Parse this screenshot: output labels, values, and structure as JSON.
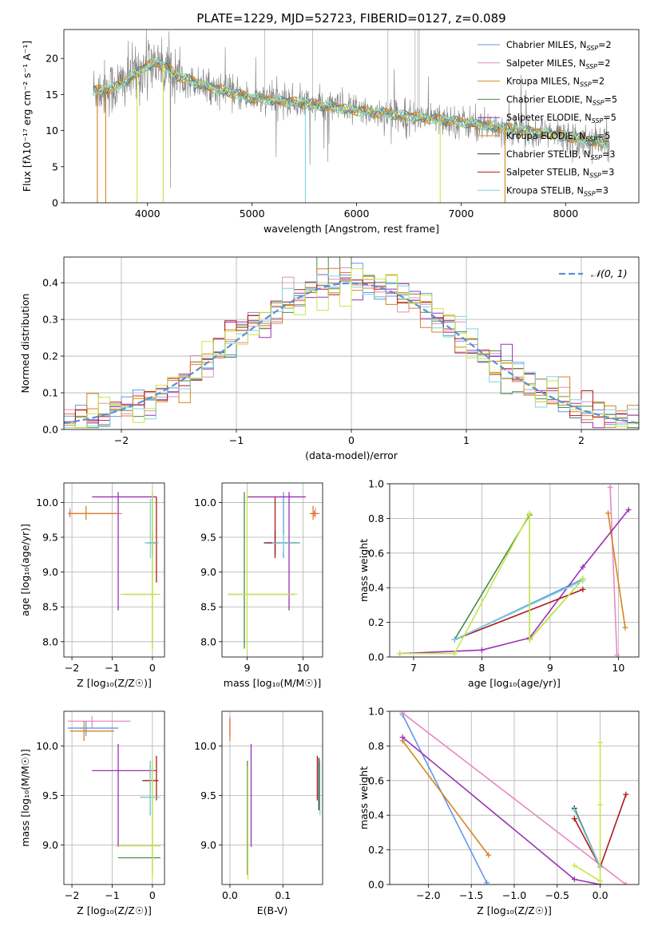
{
  "figure_title": "PLATE=1229, MJD=52723, FIBERID=0127, z=0.089",
  "models": [
    {
      "name": "Chabrier MILES",
      "nssp": "2",
      "color": "#6495ed"
    },
    {
      "name": "Salpeter MILES",
      "nssp": "2",
      "color": "#e78ac3"
    },
    {
      "name": "Kroupa MILES",
      "nssp": "2",
      "color": "#d4871c"
    },
    {
      "name": "Chabrier ELODIE",
      "nssp": "5",
      "color": "#4a8a4a"
    },
    {
      "name": "Salpeter ELODIE",
      "nssp": "5",
      "color": "#9b30b5"
    },
    {
      "name": "Kroupa ELODIE",
      "nssp": "5",
      "color": "#e07b2a"
    },
    {
      "name": "Chabrier STELIB",
      "nssp": "3",
      "color": "#2f2f2f"
    },
    {
      "name": "Salpeter STELIB",
      "nssp": "3",
      "color": "#b0181c"
    },
    {
      "name": "Kroupa STELIB",
      "nssp": "3",
      "color": "#7fd6dc"
    }
  ],
  "nssp_prefix": "N",
  "nssp_sub": "SSP",
  "extra_colors": {
    "data": "#808080",
    "fit_yellow": "#c8e64a",
    "gauss": "#5b8fd9"
  },
  "chart_data": [
    {
      "id": "spectrum",
      "type": "line",
      "xlabel": "wavelength [Angstrom, rest frame]",
      "ylabel": "Flux [fλ10⁻¹⁷ erg cm⁻² s⁻¹ A⁻¹]",
      "xlim": [
        3200,
        8700
      ],
      "ylim": [
        0,
        24
      ],
      "xticks": [
        4000,
        5000,
        6000,
        7000,
        8000
      ],
      "yticks": [
        0,
        5,
        10,
        15,
        20
      ],
      "grid": false,
      "legend": "top-right",
      "continuum": {
        "x": [
          3500,
          3700,
          3900,
          4000,
          4100,
          4300,
          4600,
          5000,
          5500,
          6000,
          6500,
          7000,
          7500,
          8000,
          8400
        ],
        "y": [
          15.5,
          16,
          18,
          19,
          19.5,
          17.5,
          16,
          14.5,
          13.8,
          12.8,
          12,
          11.2,
          10.2,
          9.2,
          8.2
        ]
      }
    },
    {
      "id": "residuals",
      "type": "line",
      "xlabel": "(data-model)/error",
      "ylabel": "Normed distribution",
      "xlim": [
        -2.5,
        2.5
      ],
      "ylim": [
        0,
        0.47
      ],
      "xticks": [
        -2,
        -1,
        0,
        1,
        2
      ],
      "yticks": [
        0.0,
        0.1,
        0.2,
        0.3,
        0.4
      ],
      "grid": true,
      "legend": "top-right",
      "reference_label": "𝒩(0, 1)"
    },
    {
      "id": "age_vs_z",
      "type": "scatter",
      "xlabel": "Z [log₁₀(Z/Z☉)]",
      "ylabel": "age  [log₁₀(age/yr)]",
      "xlim": [
        -2.2,
        0.3
      ],
      "ylim": [
        7.78,
        10.28
      ],
      "xticks": [
        -2,
        -1,
        0
      ],
      "yticks": [
        8.0,
        8.5,
        9.0,
        9.5,
        10.0
      ],
      "grid": true,
      "errorbars": [
        {
          "m": 0,
          "x": 0.0,
          "y": 9.42,
          "xlo": -0.08,
          "xhi": 0.1,
          "ylo": 9.2,
          "yhi": 10.15
        },
        {
          "m": 1,
          "x": -2.05,
          "y": 9.84,
          "xlo": -2.1,
          "xhi": -0.75,
          "ylo": 9.78,
          "yhi": 9.92
        },
        {
          "m": 2,
          "x": -1.65,
          "y": 9.84,
          "xlo": -2.05,
          "xhi": -0.9,
          "ylo": 9.75,
          "yhi": 9.95
        },
        {
          "m": 3,
          "x": 0.0,
          "y": 8.68,
          "xlo": -0.7,
          "xhi": 0.1,
          "ylo": 7.9,
          "yhi": 10.1
        },
        {
          "m": 4,
          "x": -0.85,
          "y": 10.08,
          "xlo": -1.5,
          "xhi": 0.1,
          "ylo": 8.45,
          "yhi": 10.15
        },
        {
          "m": 5,
          "x": -2.05,
          "y": 9.84,
          "xlo": -2.1,
          "xhi": -0.85,
          "ylo": 9.8,
          "yhi": 9.88
        },
        {
          "m": 6,
          "x": 0.0,
          "y": 9.42,
          "xlo": -0.15,
          "xhi": 0.1,
          "ylo": 9.25,
          "yhi": 9.6
        },
        {
          "m": 7,
          "x": 0.1,
          "y": 9.42,
          "xlo": -0.05,
          "xhi": 0.15,
          "ylo": 8.85,
          "yhi": 10.08
        },
        {
          "m": 8,
          "x": -0.05,
          "y": 9.42,
          "xlo": -0.2,
          "xhi": 0.15,
          "ylo": 9.2,
          "yhi": 10.05
        },
        {
          "m": 9,
          "x": 0.0,
          "y": 8.68,
          "xlo": -0.8,
          "xhi": 0.2,
          "ylo": 7.85,
          "yhi": 10.15
        }
      ]
    },
    {
      "id": "age_vs_mass",
      "type": "scatter",
      "xlabel": "mass [log₁₀(M/M☉)]",
      "ylabel": "",
      "xlim": [
        8.55,
        10.35
      ],
      "ylim": [
        7.78,
        10.28
      ],
      "xticks": [
        9,
        10
      ],
      "yticks": [
        8.0,
        8.5,
        9.0,
        9.5,
        10.0
      ],
      "grid": true,
      "errorbars": [
        {
          "m": 0,
          "x": 9.65,
          "y": 9.42,
          "xlo": 9.3,
          "xhi": 9.95,
          "ylo": 9.2,
          "yhi": 10.15
        },
        {
          "m": 1,
          "x": 10.22,
          "y": 9.84,
          "xlo": 10.12,
          "xhi": 10.3,
          "ylo": 9.78,
          "yhi": 9.92
        },
        {
          "m": 2,
          "x": 10.18,
          "y": 9.84,
          "xlo": 10.12,
          "xhi": 10.28,
          "ylo": 9.75,
          "yhi": 9.95
        },
        {
          "m": 3,
          "x": 8.95,
          "y": 8.68,
          "xlo": 8.65,
          "xhi": 9.85,
          "ylo": 7.9,
          "yhi": 10.15
        },
        {
          "m": 4,
          "x": 9.75,
          "y": 10.08,
          "xlo": 9.0,
          "xhi": 10.05,
          "ylo": 8.45,
          "yhi": 10.15
        },
        {
          "m": 5,
          "x": 10.2,
          "y": 9.84,
          "xlo": 10.15,
          "xhi": 10.25,
          "ylo": 9.8,
          "yhi": 9.88
        },
        {
          "m": 6,
          "x": 9.5,
          "y": 9.42,
          "xlo": 9.3,
          "xhi": 9.95,
          "ylo": 9.25,
          "yhi": 9.6
        },
        {
          "m": 7,
          "x": 9.5,
          "y": 9.42,
          "xlo": 9.35,
          "xhi": 9.9,
          "ylo": 9.2,
          "yhi": 10.08
        },
        {
          "m": 8,
          "x": 9.65,
          "y": 9.42,
          "xlo": 9.45,
          "xhi": 9.95,
          "ylo": 9.3,
          "yhi": 9.55
        },
        {
          "m": 9,
          "x": 9.0,
          "y": 8.68,
          "xlo": 8.65,
          "xhi": 9.9,
          "ylo": 7.85,
          "yhi": 10.15
        }
      ]
    },
    {
      "id": "weight_vs_age",
      "type": "line",
      "xlabel": "age  [log₁₀(age/yr)]",
      "ylabel": "mass weight",
      "xlim": [
        6.65,
        10.3
      ],
      "ylim": [
        0,
        1
      ],
      "xticks": [
        7,
        8,
        9,
        10
      ],
      "yticks": [
        0.0,
        0.2,
        0.4,
        0.6,
        0.8,
        1.0
      ],
      "grid": true,
      "lines": [
        {
          "m": 0,
          "x": [
            7.6,
            9.48
          ],
          "y": [
            0.1,
            0.45
          ]
        },
        {
          "m": 1,
          "x": [
            9.88,
            9.98
          ],
          "y": [
            0.98,
            0.01
          ]
        },
        {
          "m": 2,
          "x": [
            9.85,
            10.1
          ],
          "y": [
            0.83,
            0.17
          ]
        },
        {
          "m": 3,
          "x": [
            7.6,
            8.7,
            8.7,
            9.48
          ],
          "y": [
            0.1,
            0.82,
            0.1,
            0.45
          ]
        },
        {
          "m": 4,
          "x": [
            6.8,
            8.0,
            8.7,
            9.48,
            10.15
          ],
          "y": [
            0.02,
            0.04,
            0.11,
            0.52,
            0.85
          ]
        },
        {
          "m": 7,
          "x": [
            7.6,
            9.48
          ],
          "y": [
            0.1,
            0.39
          ]
        },
        {
          "m": 8,
          "x": [
            7.6,
            9.48
          ],
          "y": [
            0.1,
            0.44
          ]
        },
        {
          "m": 9,
          "x": [
            6.8,
            7.6,
            8.7,
            8.7,
            9.48
          ],
          "y": [
            0.02,
            0.02,
            0.83,
            0.1,
            0.45
          ]
        }
      ]
    },
    {
      "id": "mass_vs_z",
      "type": "scatter",
      "xlabel": "Z [log₁₀(Z/Z☉)]",
      "ylabel": "mass [log₁₀(M/M☉)]",
      "xlim": [
        -2.2,
        0.3
      ],
      "ylim": [
        8.6,
        10.35
      ],
      "xticks": [
        -2,
        -1,
        0
      ],
      "yticks": [
        9.0,
        9.5,
        10.0
      ],
      "grid": true,
      "errorbars": [
        {
          "m": 0,
          "x": -1.65,
          "y": 10.18,
          "xlo": -2.1,
          "xhi": -0.85,
          "ylo": 10.1,
          "yhi": 10.25
        },
        {
          "m": 1,
          "x": -1.5,
          "y": 10.25,
          "xlo": -2.1,
          "xhi": -0.55,
          "ylo": 10.18,
          "yhi": 10.3
        },
        {
          "m": 2,
          "x": -1.7,
          "y": 10.15,
          "xlo": -2.05,
          "xhi": -0.95,
          "ylo": 10.05,
          "yhi": 10.25
        },
        {
          "m": 3,
          "x": 0.0,
          "y": 8.87,
          "xlo": -0.85,
          "xhi": 0.2,
          "ylo": 8.7,
          "yhi": 9.85
        },
        {
          "m": 4,
          "x": -0.85,
          "y": 9.75,
          "xlo": -1.5,
          "xhi": 0.1,
          "ylo": 8.98,
          "yhi": 10.02
        },
        {
          "m": 6,
          "x": -0.05,
          "y": 9.48,
          "xlo": -0.3,
          "xhi": 0.15,
          "ylo": 9.3,
          "yhi": 9.85
        },
        {
          "m": 7,
          "x": 0.1,
          "y": 9.65,
          "xlo": -0.25,
          "xhi": 0.15,
          "ylo": 9.45,
          "yhi": 9.9
        },
        {
          "m": 8,
          "x": -0.05,
          "y": 9.48,
          "xlo": -0.3,
          "xhi": 0.2,
          "ylo": 9.3,
          "yhi": 9.85
        },
        {
          "m": 9,
          "x": 0.0,
          "y": 8.99,
          "xlo": -0.9,
          "xhi": 0.2,
          "ylo": 8.65,
          "yhi": 9.85
        }
      ]
    },
    {
      "id": "mass_vs_ebv",
      "type": "scatter",
      "xlabel": "E(B-V)",
      "ylabel": "",
      "xlim": [
        -0.015,
        0.175
      ],
      "ylim": [
        8.6,
        10.35
      ],
      "xticks": [
        0.0,
        0.1
      ],
      "yticks": [
        9.0,
        9.5,
        10.0
      ],
      "grid": true,
      "errorbars": [
        {
          "m": 1,
          "x": 0.0,
          "y": 10.2,
          "xlo": 0.0,
          "xhi": 0.0,
          "ylo": 10.1,
          "yhi": 10.3
        },
        {
          "m": 5,
          "x": 0.0,
          "y": 10.15,
          "xlo": 0.0,
          "xhi": 0.0,
          "ylo": 10.05,
          "yhi": 10.28
        },
        {
          "m": 3,
          "x": 0.033,
          "y": 9.3,
          "xlo": 0.033,
          "xhi": 0.033,
          "ylo": 8.7,
          "yhi": 9.85
        },
        {
          "m": 9,
          "x": 0.034,
          "y": 9.3,
          "xlo": 0.034,
          "xhi": 0.034,
          "ylo": 8.65,
          "yhi": 9.8
        },
        {
          "m": 4,
          "x": 0.04,
          "y": 9.5,
          "xlo": 0.04,
          "xhi": 0.04,
          "ylo": 8.98,
          "yhi": 10.02
        },
        {
          "m": 7,
          "x": 0.165,
          "y": 9.65,
          "xlo": 0.165,
          "xhi": 0.165,
          "ylo": 9.45,
          "yhi": 9.9
        },
        {
          "m": 6,
          "x": 0.168,
          "y": 9.6,
          "xlo": 0.168,
          "xhi": 0.168,
          "ylo": 9.35,
          "yhi": 9.88
        },
        {
          "m": 8,
          "x": 0.17,
          "y": 9.55,
          "xlo": 0.17,
          "xhi": 0.17,
          "ylo": 9.3,
          "yhi": 9.85
        }
      ]
    },
    {
      "id": "weight_vs_z",
      "type": "line",
      "xlabel": "Z [log₁₀(Z/Z☉)]",
      "ylabel": "mass weight",
      "xlim": [
        -2.45,
        0.45
      ],
      "ylim": [
        0,
        1
      ],
      "xticks": [
        -2.0,
        -1.5,
        -1.0,
        -0.5,
        0.0
      ],
      "yticks": [
        0.0,
        0.2,
        0.4,
        0.6,
        0.8,
        1.0
      ],
      "grid": true,
      "lines": [
        {
          "m": 0,
          "x": [
            -2.3,
            -1.32
          ],
          "y": [
            0.98,
            0.01
          ]
        },
        {
          "m": 1,
          "x": [
            -2.3,
            0.3
          ],
          "y": [
            0.99,
            0.0
          ]
        },
        {
          "m": 2,
          "x": [
            -2.3,
            -1.3
          ],
          "y": [
            0.83,
            0.17
          ]
        },
        {
          "m": 4,
          "x": [
            -2.3,
            -0.3,
            0.0
          ],
          "y": [
            0.85,
            0.03,
            0.0
          ]
        },
        {
          "m": 6,
          "x": [
            -0.3,
            0.0
          ],
          "y": [
            0.44,
            0.1
          ]
        },
        {
          "m": 7,
          "x": [
            -0.3,
            0.0,
            0.3
          ],
          "y": [
            0.38,
            0.1,
            0.52
          ]
        },
        {
          "m": 8,
          "x": [
            -0.3,
            0.0
          ],
          "y": [
            0.43,
            0.1
          ]
        },
        {
          "m": 9,
          "x": [
            -0.3,
            0.0,
            0.0,
            0.0
          ],
          "y": [
            0.11,
            0.02,
            0.82,
            0.46
          ]
        }
      ]
    }
  ]
}
